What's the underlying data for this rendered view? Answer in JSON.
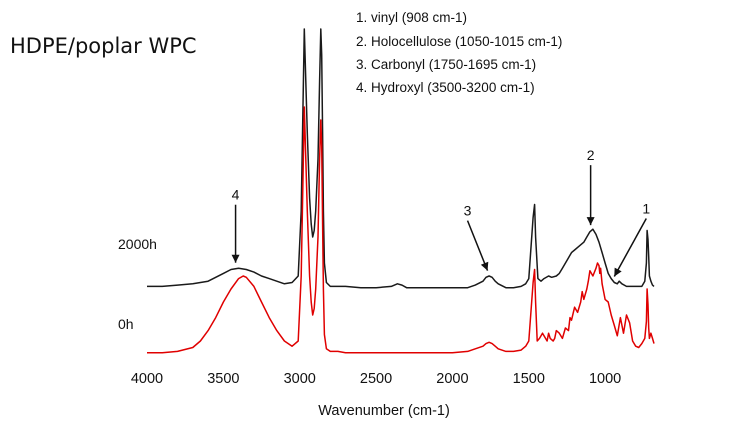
{
  "chart_data": {
    "type": "line",
    "title": "HDPE/poplar WPC",
    "xlabel": "Wavenumber (cm-1)",
    "ylabel": "",
    "xlim": [
      4000,
      680
    ],
    "x_reversed": true,
    "x_ticks": [
      4000,
      3500,
      3000,
      2500,
      2000,
      1500,
      1000
    ],
    "legend": [
      "1. vinyl (908 cm-1)",
      "2. Holocellulose (1050-1015 cm-1)",
      "3. Carbonyl (1750-1695 cm-1)",
      "4. Hydroxyl (3500-3200 cm-1)"
    ],
    "annotations": [
      {
        "label": "1",
        "x": 940,
        "series": "2000h"
      },
      {
        "label": "2",
        "x": 1095,
        "series": "2000h"
      },
      {
        "label": "3",
        "x": 1770,
        "series": "2000h"
      },
      {
        "label": "4",
        "x": 3420,
        "series": "2000h"
      }
    ],
    "series": [
      {
        "name": "2000h",
        "color": "#1a1a1a",
        "x": [
          4000,
          3900,
          3800,
          3700,
          3600,
          3500,
          3450,
          3400,
          3350,
          3300,
          3250,
          3200,
          3150,
          3100,
          3050,
          3010,
          2990,
          2970,
          2950,
          2935,
          2925,
          2915,
          2905,
          2895,
          2880,
          2870,
          2862,
          2856,
          2850,
          2845,
          2838,
          2825,
          2800,
          2750,
          2700,
          2600,
          2500,
          2400,
          2360,
          2330,
          2300,
          2200,
          2100,
          2000,
          1900,
          1850,
          1800,
          1780,
          1760,
          1740,
          1720,
          1700,
          1650,
          1600,
          1550,
          1520,
          1500,
          1472,
          1462,
          1455,
          1440,
          1420,
          1400,
          1370,
          1350,
          1320,
          1300,
          1280,
          1250,
          1220,
          1200,
          1180,
          1160,
          1140,
          1120,
          1100,
          1080,
          1060,
          1040,
          1020,
          1000,
          980,
          960,
          940,
          920,
          908,
          890,
          860,
          830,
          800,
          780,
          760,
          740,
          730,
          725,
          719,
          715,
          710,
          700,
          690,
          680
        ],
        "values": [
          0.02,
          0.02,
          0.03,
          0.04,
          0.06,
          0.12,
          0.15,
          0.16,
          0.15,
          0.13,
          0.1,
          0.08,
          0.06,
          0.04,
          0.05,
          0.1,
          0.6,
          2.0,
          1.2,
          0.7,
          0.5,
          0.4,
          0.45,
          0.6,
          1.0,
          1.6,
          2.0,
          1.8,
          1.2,
          0.6,
          0.2,
          0.05,
          0.02,
          0.02,
          0.02,
          0.01,
          0.01,
          0.02,
          0.04,
          0.03,
          0.01,
          0.01,
          0.01,
          0.01,
          0.01,
          0.03,
          0.06,
          0.09,
          0.1,
          0.09,
          0.06,
          0.04,
          0.01,
          0.01,
          0.02,
          0.04,
          0.08,
          0.55,
          0.65,
          0.4,
          0.08,
          0.06,
          0.08,
          0.1,
          0.09,
          0.1,
          0.12,
          0.16,
          0.22,
          0.28,
          0.3,
          0.32,
          0.34,
          0.36,
          0.4,
          0.44,
          0.46,
          0.42,
          0.36,
          0.28,
          0.2,
          0.12,
          0.08,
          0.05,
          0.04,
          0.06,
          0.04,
          0.02,
          0.02,
          0.02,
          0.02,
          0.02,
          0.06,
          0.2,
          0.45,
          0.38,
          0.25,
          0.1,
          0.06,
          0.03,
          0.02
        ]
      },
      {
        "name": "0h",
        "color": "#e00000",
        "x": [
          4000,
          3900,
          3800,
          3700,
          3650,
          3600,
          3550,
          3500,
          3450,
          3400,
          3370,
          3350,
          3300,
          3250,
          3200,
          3150,
          3100,
          3050,
          3010,
          2990,
          2970,
          2950,
          2935,
          2925,
          2915,
          2905,
          2895,
          2880,
          2870,
          2862,
          2856,
          2850,
          2845,
          2838,
          2825,
          2800,
          2750,
          2700,
          2600,
          2500,
          2400,
          2300,
          2200,
          2100,
          2000,
          1900,
          1850,
          1800,
          1780,
          1760,
          1740,
          1720,
          1700,
          1650,
          1600,
          1550,
          1520,
          1500,
          1472,
          1462,
          1455,
          1445,
          1430,
          1410,
          1400,
          1380,
          1370,
          1360,
          1340,
          1330,
          1320,
          1300,
          1280,
          1260,
          1240,
          1230,
          1220,
          1200,
          1180,
          1160,
          1150,
          1140,
          1120,
          1110,
          1100,
          1080,
          1060,
          1050,
          1040,
          1035,
          1030,
          1020,
          1000,
          980,
          960,
          940,
          920,
          900,
          880,
          860,
          840,
          820,
          800,
          780,
          760,
          740,
          730,
          725,
          719,
          715,
          710,
          700,
          690,
          680
        ],
        "values": [
          0.01,
          0.01,
          0.02,
          0.05,
          0.1,
          0.18,
          0.28,
          0.4,
          0.5,
          0.58,
          0.6,
          0.59,
          0.52,
          0.4,
          0.28,
          0.18,
          0.1,
          0.06,
          0.1,
          0.6,
          1.9,
          1.1,
          0.6,
          0.4,
          0.3,
          0.35,
          0.5,
          0.9,
          1.5,
          1.8,
          1.6,
          1.0,
          0.5,
          0.15,
          0.04,
          0.02,
          0.02,
          0.01,
          0.01,
          0.01,
          0.01,
          0.01,
          0.01,
          0.01,
          0.01,
          0.02,
          0.04,
          0.06,
          0.08,
          0.09,
          0.08,
          0.06,
          0.04,
          0.02,
          0.02,
          0.03,
          0.06,
          0.1,
          0.55,
          0.65,
          0.4,
          0.1,
          0.12,
          0.16,
          0.14,
          0.1,
          0.16,
          0.12,
          0.1,
          0.12,
          0.18,
          0.16,
          0.12,
          0.2,
          0.18,
          0.28,
          0.26,
          0.36,
          0.32,
          0.4,
          0.48,
          0.42,
          0.5,
          0.56,
          0.64,
          0.6,
          0.66,
          0.7,
          0.68,
          0.62,
          0.66,
          0.54,
          0.42,
          0.4,
          0.3,
          0.22,
          0.14,
          0.28,
          0.16,
          0.3,
          0.24,
          0.1,
          0.06,
          0.05,
          0.08,
          0.12,
          0.25,
          0.5,
          0.38,
          0.2,
          0.12,
          0.16,
          0.12,
          0.08
        ]
      }
    ]
  }
}
